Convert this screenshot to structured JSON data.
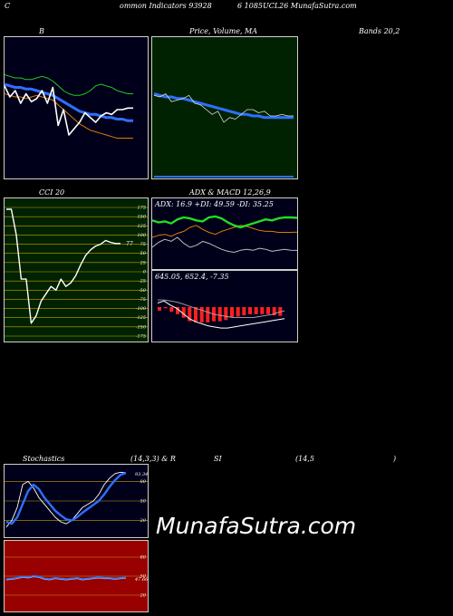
{
  "header": {
    "left": "C",
    "mid": "ommon  Indicators 93928",
    "right": "6  1085UCL26  MunafaSutra.com"
  },
  "panels": {
    "bollinger": {
      "title": "B",
      "title_right": "Bands 20,2"
    },
    "price": {
      "title": "Price,  Volume,  MA"
    },
    "cci": {
      "title": "CCI 20",
      "ticks": [
        "175",
        "150",
        "125",
        "100",
        "75",
        "50",
        "25",
        "0",
        "-25",
        "-50",
        "-75",
        "-100",
        "-125",
        "-150",
        "-175"
      ],
      "last_label": "77"
    },
    "adx": {
      "title": "ADX  & MACD 12,26,9",
      "readout": "ADX: 16.9  +DI: 49.59 -DI: 35.25"
    },
    "macd": {
      "readout": "645.05,  652.4,  -7.35"
    },
    "stoch": {
      "title_left": "Stochastics",
      "title_mid": "(14,3,3) & R",
      "title_rsi": "SI",
      "title_rsi_params": "(14,5",
      "title_close": ")",
      "ticks": [
        "80",
        "50",
        "20"
      ],
      "last_label": "93.34"
    },
    "rsi": {
      "ticks": [
        "80",
        "50",
        "20"
      ],
      "last_label": "47.66"
    }
  },
  "watermark": "MunafaSutra.com",
  "colors": {
    "bg": "#000000",
    "dark_navy": "#00001a",
    "green_bg": "#002200",
    "red_bg": "#990000",
    "blue": "#2f6fff",
    "orange": "#e07b00",
    "green": "#22dd22"
  },
  "chart_data": [
    {
      "type": "line",
      "title": "Bands 20,2",
      "series": [
        {
          "values": [
            62,
            61,
            60,
            60,
            59,
            59,
            60,
            61,
            60,
            58,
            55,
            52,
            50,
            49,
            49,
            50,
            52,
            55,
            56,
            55,
            54,
            52,
            51,
            50,
            50
          ]
        },
        {
          "values": [
            50,
            49,
            48,
            48,
            47,
            48,
            49,
            48,
            47,
            46,
            43,
            40,
            37,
            34,
            31,
            29,
            27,
            26,
            25,
            24,
            23,
            22,
            22,
            22,
            22
          ]
        },
        {
          "values": [
            56,
            55,
            54,
            54,
            53,
            53,
            52,
            51,
            50,
            49,
            47,
            45,
            43,
            41,
            39,
            38,
            37,
            37,
            36,
            35,
            35,
            34,
            34,
            33,
            33
          ]
        },
        {
          "values": [
            55,
            48,
            52,
            44,
            50,
            45,
            47,
            52,
            44,
            54,
            30,
            40,
            24,
            28,
            32,
            38,
            35,
            32,
            36,
            38,
            37,
            40,
            40,
            41,
            41
          ]
        }
      ]
    },
    {
      "type": "line",
      "title": "Price, Volume, MA",
      "series": [
        {
          "values": [
            50,
            49,
            48,
            48,
            47,
            47,
            46,
            45,
            44,
            43,
            42,
            41,
            40,
            39,
            38,
            37,
            37,
            36,
            36,
            35,
            35,
            35,
            35,
            35,
            35
          ]
        },
        {
          "values": [
            49,
            48,
            50,
            45,
            46,
            47,
            49,
            44,
            43,
            40,
            37,
            39,
            32,
            35,
            34,
            37,
            40,
            40,
            38,
            39,
            36,
            36,
            37,
            36,
            36
          ]
        }
      ]
    },
    {
      "type": "line",
      "title": "CCI 20",
      "ylim": [
        -175,
        175
      ],
      "values": [
        170,
        170,
        100,
        -20,
        -20,
        -140,
        -120,
        -80,
        -60,
        -40,
        -50,
        -20,
        -40,
        -30,
        -10,
        20,
        45,
        60,
        70,
        75,
        85,
        80,
        77,
        77
      ]
    },
    {
      "type": "line",
      "title": "ADX & MACD 12,26,9",
      "series": [
        {
          "name": "+DI",
          "values": [
            47,
            45,
            46,
            44,
            48,
            50,
            49,
            47,
            46,
            50,
            51,
            49,
            45,
            42,
            40,
            42,
            44,
            46,
            48,
            47,
            49,
            50,
            50,
            49.59
          ]
        },
        {
          "name": "-DI",
          "values": [
            30,
            32,
            33,
            31,
            34,
            36,
            40,
            42,
            38,
            35,
            33,
            36,
            38,
            40,
            42,
            41,
            39,
            37,
            36,
            36,
            35,
            35,
            35,
            35.25
          ]
        },
        {
          "name": "ADX",
          "values": [
            20,
            25,
            28,
            26,
            30,
            24,
            20,
            22,
            26,
            24,
            21,
            18,
            16,
            15,
            17,
            18,
            17,
            19,
            18,
            16,
            17,
            18,
            17,
            16.9
          ]
        }
      ]
    },
    {
      "type": "bar",
      "title": "MACD",
      "series": [
        {
          "name": "MACD",
          "values": [
            660,
            662,
            658,
            655,
            650,
            645,
            642,
            640,
            638,
            637,
            636,
            636,
            637,
            638,
            639,
            640,
            641,
            642,
            643,
            644,
            645.05
          ]
        },
        {
          "name": "Signal",
          "values": [
            663,
            663,
            662,
            661,
            659,
            657,
            655,
            653,
            651,
            649,
            648,
            647,
            646,
            646,
            646,
            646,
            647,
            648,
            649,
            651,
            652.4
          ]
        },
        {
          "name": "Histogram",
          "values": [
            -3,
            -1,
            -4,
            -6,
            -9,
            -12,
            -13,
            -13,
            -13,
            -12,
            -12,
            -11,
            -9,
            -8,
            -7,
            -6,
            -6,
            -6,
            -6,
            -7,
            -7.35
          ]
        }
      ]
    },
    {
      "type": "line",
      "title": "Stochastics (14,3,3)",
      "ylim": [
        0,
        100
      ],
      "series": [
        {
          "values": [
            10,
            20,
            40,
            75,
            80,
            70,
            55,
            45,
            35,
            25,
            18,
            15,
            20,
            30,
            40,
            45,
            50,
            60,
            75,
            85,
            92,
            94,
            93.34
          ]
        },
        {
          "values": [
            18,
            15,
            25,
            45,
            65,
            75,
            68,
            55,
            45,
            35,
            28,
            22,
            20,
            25,
            32,
            38,
            44,
            50,
            60,
            72,
            82,
            90,
            93
          ]
        }
      ]
    },
    {
      "type": "line",
      "title": "RSI (14,5)",
      "ylim": [
        0,
        100
      ],
      "series": [
        {
          "values": [
            45,
            46,
            47,
            49,
            48,
            50,
            49,
            46,
            45,
            47,
            46,
            45,
            46,
            47,
            45,
            46,
            47,
            48,
            47,
            47,
            46,
            47,
            47.66
          ]
        }
      ]
    }
  ]
}
